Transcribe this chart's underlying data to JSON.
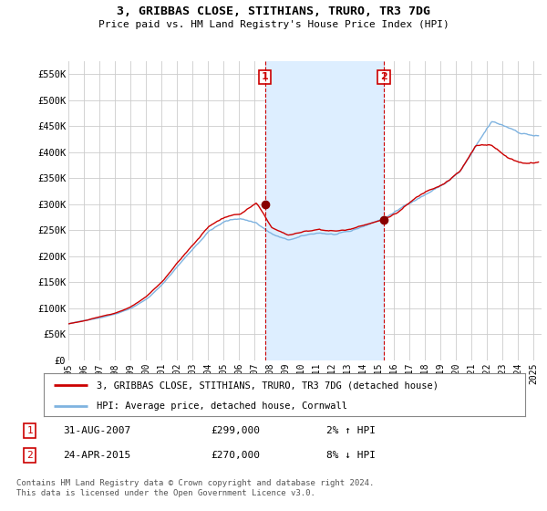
{
  "title": "3, GRIBBAS CLOSE, STITHIANS, TRURO, TR3 7DG",
  "subtitle": "Price paid vs. HM Land Registry's House Price Index (HPI)",
  "ylabel_ticks": [
    "£0",
    "£50K",
    "£100K",
    "£150K",
    "£200K",
    "£250K",
    "£300K",
    "£350K",
    "£400K",
    "£450K",
    "£500K",
    "£550K"
  ],
  "ytick_values": [
    0,
    50000,
    100000,
    150000,
    200000,
    250000,
    300000,
    350000,
    400000,
    450000,
    500000,
    550000
  ],
  "ylim": [
    0,
    575000
  ],
  "hpi_color": "#7fb3e0",
  "price_color": "#cc0000",
  "shade_color": "#ddeeff",
  "marker1_x": 2007.67,
  "marker1_value": 299000,
  "marker2_x": 2015.33,
  "marker2_value": 270000,
  "legend_line1": "3, GRIBBAS CLOSE, STITHIANS, TRURO, TR3 7DG (detached house)",
  "legend_line2": "HPI: Average price, detached house, Cornwall",
  "footer": "Contains HM Land Registry data © Crown copyright and database right 2024.\nThis data is licensed under the Open Government Licence v3.0.",
  "background_color": "#ffffff",
  "grid_color": "#cccccc",
  "xmin": 1995.0,
  "xmax": 2025.5,
  "ann1_date": "31-AUG-2007",
  "ann1_price": "£299,000",
  "ann1_hpi": "2% ↑ HPI",
  "ann2_date": "24-APR-2015",
  "ann2_price": "£270,000",
  "ann2_hpi": "8% ↓ HPI"
}
